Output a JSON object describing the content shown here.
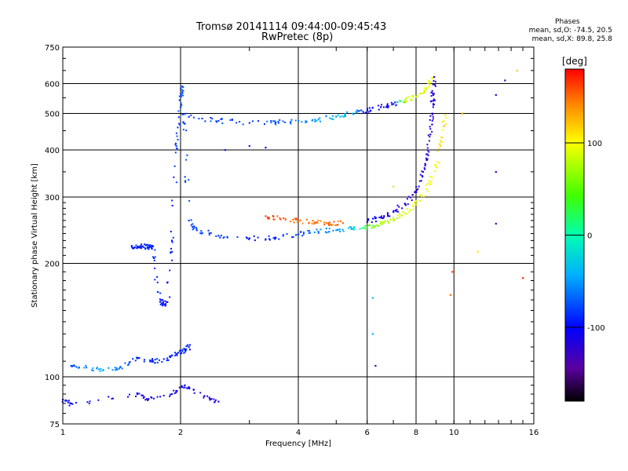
{
  "chart_data": {
    "type": "scatter",
    "title": "Tromsø 20141114 09:44:00-09:45:43",
    "subtitle": "RwPretec (8p)",
    "xlabel": "Frequency [MHz]",
    "ylabel": "Stationary phase Virtual Height [km]",
    "x_scale": "log",
    "y_scale": "log",
    "xlim": [
      1,
      16
    ],
    "ylim": [
      75,
      750
    ],
    "x_ticks": [
      "1",
      "2",
      "4",
      "6",
      "8",
      "10",
      "16"
    ],
    "x_tick_values": [
      1,
      2,
      4,
      6,
      8,
      10,
      16
    ],
    "y_ticks": [
      "75",
      "100",
      "200",
      "300",
      "400",
      "500",
      "600",
      "750"
    ],
    "y_tick_values": [
      75,
      100,
      200,
      300,
      400,
      500,
      600,
      750
    ],
    "grid": true,
    "stats": {
      "heading": "Phases",
      "line_o": "mean, sd,O: -74.5, 20.5",
      "line_x": "mean, sd,X:  89.8, 25.8"
    },
    "colorbar": {
      "label": "[deg]",
      "range": [
        -180,
        180
      ],
      "ticks": [
        "100",
        "0",
        "-100"
      ],
      "tick_values": [
        100,
        0,
        -100
      ]
    },
    "series": [
      {
        "points": [
          [
            1.5,
            222,
            -90
          ],
          [
            1.55,
            221,
            -90
          ],
          [
            1.6,
            222,
            -90
          ],
          [
            1.65,
            221,
            -90
          ],
          [
            1.7,
            222,
            -90
          ],
          [
            1.75,
            168,
            -90
          ],
          [
            1.8,
            155,
            -95
          ],
          [
            1.85,
            158,
            -95
          ],
          [
            1.9,
            230,
            -95
          ],
          [
            1.95,
            410,
            -80
          ],
          [
            2.0,
            520,
            -80
          ],
          [
            2.02,
            590,
            -80
          ],
          [
            2.05,
            470,
            -80
          ],
          [
            2.1,
            260,
            -80
          ],
          [
            2.2,
            245,
            -80
          ],
          [
            2.5,
            237,
            -85
          ],
          [
            3.0,
            233,
            -90
          ],
          [
            3.5,
            234,
            -90
          ],
          [
            4.0,
            239,
            -80
          ],
          [
            4.5,
            243,
            -60
          ],
          [
            5.0,
            245,
            -50
          ],
          [
            5.5,
            247,
            -30
          ],
          [
            6.0,
            250,
            40
          ],
          [
            6.5,
            255,
            70
          ],
          [
            7.0,
            262,
            80
          ],
          [
            7.5,
            272,
            90
          ],
          [
            8.0,
            287,
            95
          ],
          [
            8.5,
            315,
            100
          ],
          [
            9.0,
            360,
            100
          ],
          [
            9.3,
            420,
            110
          ],
          [
            9.5,
            495,
            110
          ]
        ]
      },
      {
        "points": [
          [
            2.1,
            490,
            -85
          ],
          [
            2.5,
            478,
            -80
          ],
          [
            3.0,
            472,
            -80
          ],
          [
            3.5,
            474,
            -75
          ],
          [
            4.0,
            478,
            -60
          ],
          [
            4.5,
            482,
            -50
          ],
          [
            5.0,
            490,
            -40
          ],
          [
            5.5,
            500,
            -40
          ],
          [
            6.0,
            510,
            -100
          ],
          [
            6.5,
            520,
            -110
          ],
          [
            7.0,
            530,
            -105
          ],
          [
            7.5,
            540,
            80
          ],
          [
            8.0,
            555,
            90
          ],
          [
            8.5,
            580,
            95
          ],
          [
            8.8,
            620,
            100
          ]
        ]
      },
      {
        "points": [
          [
            6.0,
            258,
            -100
          ],
          [
            6.5,
            265,
            -110
          ],
          [
            7.0,
            274,
            -115
          ],
          [
            7.5,
            288,
            -115
          ],
          [
            8.0,
            310,
            -120
          ],
          [
            8.3,
            340,
            -120
          ],
          [
            8.5,
            380,
            -120
          ],
          [
            8.7,
            440,
            -120
          ],
          [
            8.8,
            500,
            -120
          ],
          [
            8.85,
            560,
            -120
          ],
          [
            8.9,
            625,
            -120
          ]
        ]
      },
      {
        "points": [
          [
            3.3,
            267,
            160
          ],
          [
            3.6,
            262,
            160
          ],
          [
            4.0,
            259,
            150
          ],
          [
            4.4,
            257,
            150
          ],
          [
            4.8,
            256,
            150
          ],
          [
            5.2,
            256,
            150
          ]
        ]
      },
      {
        "points": [
          [
            1.05,
            107,
            -80
          ],
          [
            1.1,
            106,
            -70
          ],
          [
            1.25,
            105,
            -40
          ],
          [
            1.4,
            106,
            -60
          ],
          [
            1.55,
            112,
            -90
          ],
          [
            1.7,
            110,
            -90
          ],
          [
            1.85,
            112,
            -90
          ],
          [
            1.95,
            115,
            -90
          ],
          [
            2.05,
            118,
            -90
          ],
          [
            2.1,
            120,
            -95
          ]
        ]
      },
      {
        "points": [
          [
            1.0,
            87,
            -100
          ],
          [
            1.05,
            85,
            -100
          ],
          [
            1.55,
            90,
            -110
          ],
          [
            1.65,
            87,
            -110
          ],
          [
            1.9,
            90,
            -110
          ],
          [
            2.05,
            95,
            -100
          ],
          [
            2.3,
            89,
            -110
          ],
          [
            2.5,
            86,
            -120
          ]
        ]
      },
      {
        "points": [
          [
            6.3,
            107,
            -130
          ],
          [
            6.2,
            130,
            -40
          ],
          [
            6.2,
            162,
            -30
          ],
          [
            9.8,
            165,
            150
          ],
          [
            9.9,
            190,
            160
          ],
          [
            10.5,
            500,
            130
          ],
          [
            11.5,
            215,
            110
          ],
          [
            12.8,
            560,
            -120
          ],
          [
            12.8,
            350,
            -130
          ],
          [
            12.8,
            255,
            -130
          ],
          [
            13.5,
            612,
            -120
          ],
          [
            14.5,
            650,
            120
          ],
          [
            15.0,
            183,
            170
          ],
          [
            7.0,
            320,
            80
          ],
          [
            2.6,
            400,
            -90
          ],
          [
            3.0,
            410,
            -90
          ],
          [
            3.3,
            406,
            -120
          ]
        ]
      }
    ]
  }
}
